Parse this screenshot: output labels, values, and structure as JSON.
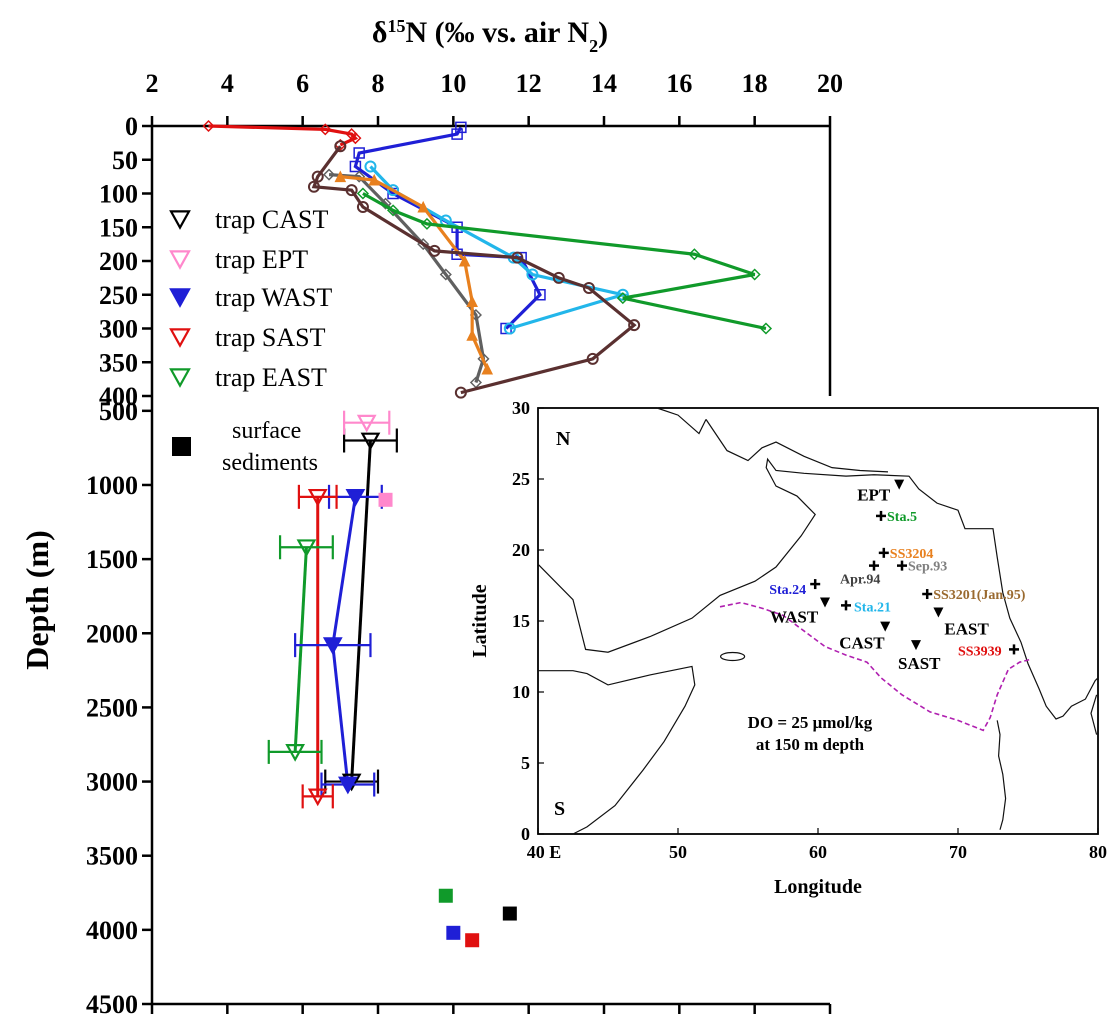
{
  "chart_data": [
    {
      "type": "line",
      "title": "",
      "xlabel_main": "δ",
      "xlabel_sup": "15",
      "xlabel_rest": "N (‰ vs. air N",
      "xlabel_sub": "2",
      "xlabel_close": ")",
      "ylabel": "Depth (m)",
      "xlim": [
        2,
        20
      ],
      "xticks": [
        2,
        4,
        6,
        8,
        10,
        12,
        14,
        16,
        18,
        20
      ],
      "upper_ylim": [
        0,
        400
      ],
      "upper_yticks": [
        0,
        50,
        100,
        150,
        200,
        250,
        300,
        350,
        400
      ],
      "lower_ylim": [
        400,
        4500
      ],
      "lower_yticks": [
        500,
        1000,
        1500,
        2000,
        2500,
        3000,
        3500,
        4000,
        4500
      ],
      "legend_position": "left",
      "legend": [
        {
          "label": "trap CAST",
          "marker": "tri-down-open",
          "color": "#000000"
        },
        {
          "label": "trap EPT",
          "marker": "tri-down-open",
          "color": "#ff88cc"
        },
        {
          "label": "trap WAST",
          "marker": "tri-down-filled",
          "color": "#1f1fd6"
        },
        {
          "label": "trap SAST",
          "marker": "tri-down-open",
          "color": "#e01010"
        },
        {
          "label": "trap EAST",
          "marker": "tri-down-open",
          "color": "#109a2a"
        },
        {
          "label": "surface",
          "label2": "sediments",
          "marker": "square",
          "color": "#000000"
        }
      ],
      "profiles": [
        {
          "color": "#e01010",
          "marker": "diamond",
          "points": [
            [
              3.5,
              0
            ],
            [
              6.6,
              5
            ],
            [
              7.3,
              12
            ],
            [
              7.4,
              18
            ],
            [
              7.0,
              28
            ]
          ]
        },
        {
          "color": "#1f1fd6",
          "marker": "square",
          "points": [
            [
              10.2,
              2
            ],
            [
              10.1,
              12
            ],
            [
              7.5,
              40
            ],
            [
              7.4,
              60
            ],
            [
              8.4,
              100
            ],
            [
              10.1,
              150
            ],
            [
              10.1,
              190
            ],
            [
              11.8,
              195
            ],
            [
              12.3,
              250
            ],
            [
              11.4,
              300
            ]
          ]
        },
        {
          "color": "#22b6ea",
          "marker": "circle",
          "points": [
            [
              7.8,
              60
            ],
            [
              8.4,
              95
            ],
            [
              9.8,
              140
            ],
            [
              11.6,
              195
            ],
            [
              12.1,
              220
            ],
            [
              14.5,
              250
            ],
            [
              11.5,
              300
            ]
          ]
        },
        {
          "color": "#606060",
          "marker": "diamond",
          "points": [
            [
              6.7,
              72
            ],
            [
              7.5,
              75
            ],
            [
              8.2,
              115
            ],
            [
              9.2,
              175
            ],
            [
              9.8,
              220
            ],
            [
              10.6,
              280
            ],
            [
              10.8,
              345
            ],
            [
              10.6,
              380
            ]
          ]
        },
        {
          "color": "#e8801e",
          "marker": "triangle",
          "points": [
            [
              7.0,
              75
            ],
            [
              7.9,
              80
            ],
            [
              9.2,
              120
            ],
            [
              10.3,
              200
            ],
            [
              10.5,
              260
            ],
            [
              10.5,
              310
            ],
            [
              10.9,
              360
            ]
          ]
        },
        {
          "color": "#109a2a",
          "marker": "diamond",
          "points": [
            [
              7.6,
              100
            ],
            [
              8.4,
              125
            ],
            [
              9.3,
              145
            ],
            [
              16.4,
              190
            ],
            [
              18.0,
              220
            ],
            [
              14.5,
              255
            ],
            [
              18.3,
              300
            ]
          ]
        },
        {
          "color": "#5a3030",
          "marker": "circle",
          "points": [
            [
              7.0,
              30
            ],
            [
              6.4,
              75
            ],
            [
              6.3,
              90
            ],
            [
              7.3,
              95
            ],
            [
              7.6,
              120
            ],
            [
              9.5,
              185
            ],
            [
              11.7,
              195
            ],
            [
              12.8,
              225
            ],
            [
              13.6,
              240
            ],
            [
              14.8,
              295
            ],
            [
              13.7,
              345
            ],
            [
              10.2,
              395
            ]
          ]
        }
      ],
      "traps": [
        {
          "name": "CAST",
          "color": "#000000",
          "filled": false,
          "points": [
            {
              "x": 7.8,
              "y": 700,
              "err": 0.7
            },
            {
              "x": 7.3,
              "y": 3000,
              "err": 0.7
            }
          ]
        },
        {
          "name": "EPT",
          "color": "#ff88cc",
          "filled": false,
          "points": [
            {
              "x": 7.7,
              "y": 580,
              "err": 0.6
            }
          ]
        },
        {
          "name": "WAST",
          "color": "#1f1fd6",
          "filled": true,
          "points": [
            {
              "x": 7.4,
              "y": 1080,
              "err": 0.7
            },
            {
              "x": 6.8,
              "y": 2080,
              "err": 1.0
            },
            {
              "x": 7.2,
              "y": 3020,
              "err": 0.7
            }
          ]
        },
        {
          "name": "SAST",
          "color": "#e01010",
          "filled": false,
          "points": [
            {
              "x": 6.4,
              "y": 1080,
              "err": 0.5
            },
            {
              "x": 6.4,
              "y": 3100,
              "err": 0.4
            }
          ]
        },
        {
          "name": "EAST",
          "color": "#109a2a",
          "filled": false,
          "points": [
            {
              "x": 6.1,
              "y": 1420,
              "err": 0.7
            },
            {
              "x": 5.8,
              "y": 2800,
              "err": 0.7
            }
          ]
        }
      ],
      "trap_lines": [
        {
          "color": "#000000",
          "from": [
            7.8,
            700
          ],
          "to": [
            7.3,
            3000
          ]
        },
        {
          "color": "#1f1fd6",
          "from": [
            7.4,
            1080
          ],
          "to": [
            6.8,
            2080
          ]
        },
        {
          "color": "#1f1fd6",
          "from": [
            6.8,
            2080
          ],
          "to": [
            7.2,
            3020
          ]
        },
        {
          "color": "#e01010",
          "from": [
            6.4,
            1080
          ],
          "to": [
            6.4,
            3100
          ]
        },
        {
          "color": "#109a2a",
          "from": [
            6.1,
            1420
          ],
          "to": [
            5.8,
            2800
          ]
        }
      ],
      "sediments": [
        {
          "color": "#ff88cc",
          "x": 8.2,
          "y": 1100
        },
        {
          "color": "#109a2a",
          "x": 9.8,
          "y": 3770
        },
        {
          "color": "#1f1fd6",
          "x": 10.0,
          "y": 4020
        },
        {
          "color": "#e01010",
          "x": 10.5,
          "y": 4070
        },
        {
          "color": "#000000",
          "x": 11.5,
          "y": 3890
        }
      ]
    },
    {
      "type": "map",
      "xlabel": "Longitude",
      "ylabel": "Latitude",
      "xlim": [
        40,
        80
      ],
      "ylim": [
        0,
        30
      ],
      "xtick_labels": [
        "40 E",
        "50",
        "60",
        "70",
        "80"
      ],
      "xticks": [
        40,
        50,
        60,
        70,
        80
      ],
      "yticks": [
        0,
        5,
        10,
        15,
        20,
        25,
        30
      ],
      "corner_n": "N",
      "corner_s": "S",
      "annotation_line1": "DO = 25 μmol/kg",
      "annotation_line2": "at 150 m depth",
      "oxygen_contour_color": "#b020b0",
      "traps": [
        {
          "label": "EPT",
          "lon": 65.8,
          "lat": 24.6
        },
        {
          "label": "WAST",
          "lon": 60.5,
          "lat": 16.3
        },
        {
          "label": "CAST",
          "lon": 64.8,
          "lat": 14.6
        },
        {
          "label": "EAST",
          "lon": 68.6,
          "lat": 15.6
        },
        {
          "label": "SAST",
          "lon": 67.0,
          "lat": 13.3
        }
      ],
      "stations": [
        {
          "label": "Sta.5",
          "lon": 64.5,
          "lat": 22.4,
          "color": "#109a2a"
        },
        {
          "label": "SS3204",
          "lon": 64.7,
          "lat": 19.8,
          "color": "#e8801e"
        },
        {
          "label": "Sep.93",
          "lon": 66.0,
          "lat": 18.9,
          "color": "#808080"
        },
        {
          "label": "Apr.94",
          "lon": 64.0,
          "lat": 18.9,
          "color": "#404040"
        },
        {
          "label": "Sta.24",
          "lon": 59.8,
          "lat": 17.6,
          "color": "#1f1fd6"
        },
        {
          "label": "Sta.21",
          "lon": 62.0,
          "lat": 16.1,
          "color": "#22b6ea"
        },
        {
          "label": "SS3201(Jan.95)",
          "lon": 67.8,
          "lat": 16.9,
          "color": "#9a6a30"
        },
        {
          "label": "SS3939",
          "lon": 74.0,
          "lat": 13.0,
          "color": "#e01010"
        }
      ]
    }
  ]
}
